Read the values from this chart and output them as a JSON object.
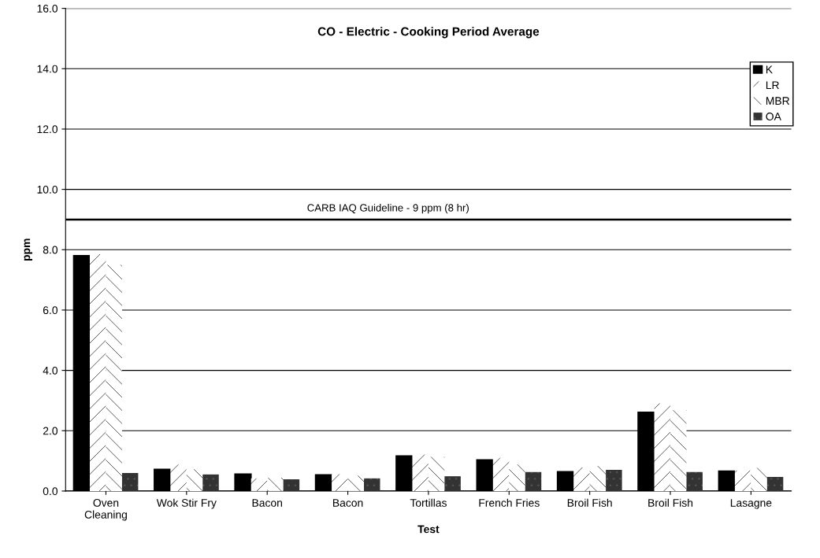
{
  "chart_data": {
    "type": "bar",
    "title": "CO - Electric - Cooking Period Average",
    "xlabel": "Test",
    "ylabel": "ppm",
    "categories": [
      "Oven\nCleaning",
      "Wok Stir Fry",
      "Bacon",
      "Bacon",
      "Tortillas",
      "French Fries",
      "Broil Fish",
      "Broil Fish",
      "Lasagne"
    ],
    "series": [
      {
        "name": "K",
        "color": "#000000",
        "values": [
          7.8,
          0.72,
          0.56,
          0.54,
          1.16,
          1.03,
          0.64,
          2.61,
          0.66
        ]
      },
      {
        "name": "LR",
        "color": "#ffffff",
        "values": [
          7.85,
          0.88,
          0.42,
          0.56,
          1.21,
          1.1,
          0.78,
          2.91,
          0.68
        ]
      },
      {
        "name": "MBR",
        "color": "#ffffff",
        "values": [
          7.5,
          0.72,
          0.44,
          0.51,
          1.13,
          0.88,
          0.83,
          2.68,
          0.77
        ]
      },
      {
        "name": "OA",
        "color": "#333333",
        "values": [
          0.6,
          0.55,
          0.39,
          0.42,
          0.49,
          0.63,
          0.7,
          0.63,
          0.47
        ]
      }
    ],
    "ylim": [
      0,
      16
    ],
    "yticks": [
      {
        "value": 0,
        "label": "0.0"
      },
      {
        "value": 2,
        "label": "2.0"
      },
      {
        "value": 4,
        "label": "4.0"
      },
      {
        "value": 6,
        "label": "6.0"
      },
      {
        "value": 8,
        "label": "8.0"
      },
      {
        "value": 10,
        "label": "10.0"
      },
      {
        "value": 12,
        "label": "12.0"
      },
      {
        "value": 14,
        "label": "14.0"
      },
      {
        "value": 16,
        "label": "16.0"
      }
    ],
    "ref_lines": [
      {
        "axis": "y",
        "value": 9,
        "label": "CARB IAQ Guideline - 9 ppm (8 hr)",
        "color": "#000000"
      }
    ],
    "grid": "y",
    "legend": "top right"
  }
}
